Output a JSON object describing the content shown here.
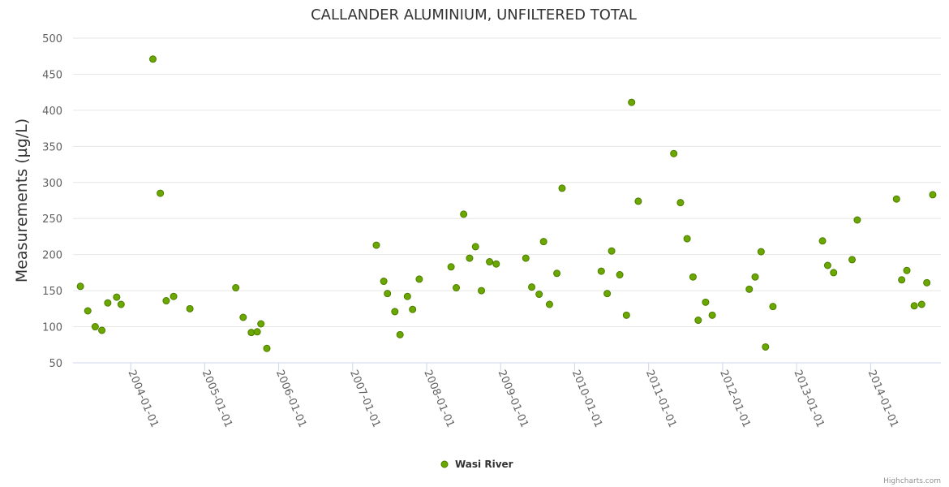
{
  "chart_data": {
    "type": "scatter",
    "title": "CALLANDER ALUMINIUM, UNFILTERED TOTAL",
    "xlabel": "",
    "ylabel": "Measurements (µg/L)",
    "ylim": [
      50,
      500
    ],
    "yticks": [
      50,
      100,
      150,
      200,
      250,
      300,
      350,
      400,
      450,
      500
    ],
    "xlim": [
      2003.22,
      2014.95
    ],
    "xticks": [
      {
        "value": 2004,
        "label": "2004-01-01"
      },
      {
        "value": 2005,
        "label": "2005-01-01"
      },
      {
        "value": 2006,
        "label": "2006-01-01"
      },
      {
        "value": 2007,
        "label": "2007-01-01"
      },
      {
        "value": 2008,
        "label": "2008-01-01"
      },
      {
        "value": 2009,
        "label": "2009-01-01"
      },
      {
        "value": 2010,
        "label": "2010-01-01"
      },
      {
        "value": 2011,
        "label": "2011-01-01"
      },
      {
        "value": 2012,
        "label": "2012-01-01"
      },
      {
        "value": 2013,
        "label": "2013-01-01"
      },
      {
        "value": 2014,
        "label": "2014-01-01"
      }
    ],
    "grid": true,
    "legend_position": "bottom-center",
    "series": [
      {
        "name": "Wasi River",
        "color": "#6aa800",
        "x": [
          2003.32,
          2003.42,
          2003.52,
          2003.61,
          2003.69,
          2003.81,
          2003.87,
          2004.3,
          2004.4,
          2004.48,
          2004.58,
          2004.8,
          2005.42,
          2005.52,
          2005.63,
          2005.71,
          2005.76,
          2005.84,
          2007.32,
          2007.42,
          2007.47,
          2007.57,
          2007.64,
          2007.74,
          2007.81,
          2007.9,
          2008.33,
          2008.4,
          2008.5,
          2008.58,
          2008.66,
          2008.74,
          2008.85,
          2008.94,
          2009.34,
          2009.42,
          2009.52,
          2009.58,
          2009.66,
          2009.76,
          2009.83,
          2010.36,
          2010.44,
          2010.5,
          2010.61,
          2010.7,
          2010.77,
          2010.86,
          2011.34,
          2011.43,
          2011.52,
          2011.6,
          2011.67,
          2011.77,
          2011.86,
          2012.36,
          2012.44,
          2012.52,
          2012.58,
          2012.68,
          2013.35,
          2013.42,
          2013.5,
          2013.75,
          2013.82,
          2014.35,
          2014.42,
          2014.49,
          2014.59,
          2014.69,
          2014.76,
          2014.84
        ],
        "y": [
          156,
          122,
          100,
          95,
          133,
          141,
          131,
          471,
          285,
          136,
          142,
          125,
          154,
          113,
          92,
          93,
          104,
          70,
          213,
          163,
          146,
          121,
          89,
          142,
          124,
          166,
          183,
          154,
          256,
          195,
          211,
          150,
          190,
          187,
          195,
          155,
          145,
          218,
          131,
          174,
          292,
          177,
          146,
          205,
          172,
          116,
          411,
          274,
          340,
          272,
          222,
          169,
          109,
          134,
          116,
          152,
          169,
          204,
          72,
          128,
          219,
          185,
          175,
          193,
          248,
          277,
          165,
          178,
          129,
          131,
          161,
          283
        ]
      }
    ]
  },
  "credits": "Highcharts.com"
}
